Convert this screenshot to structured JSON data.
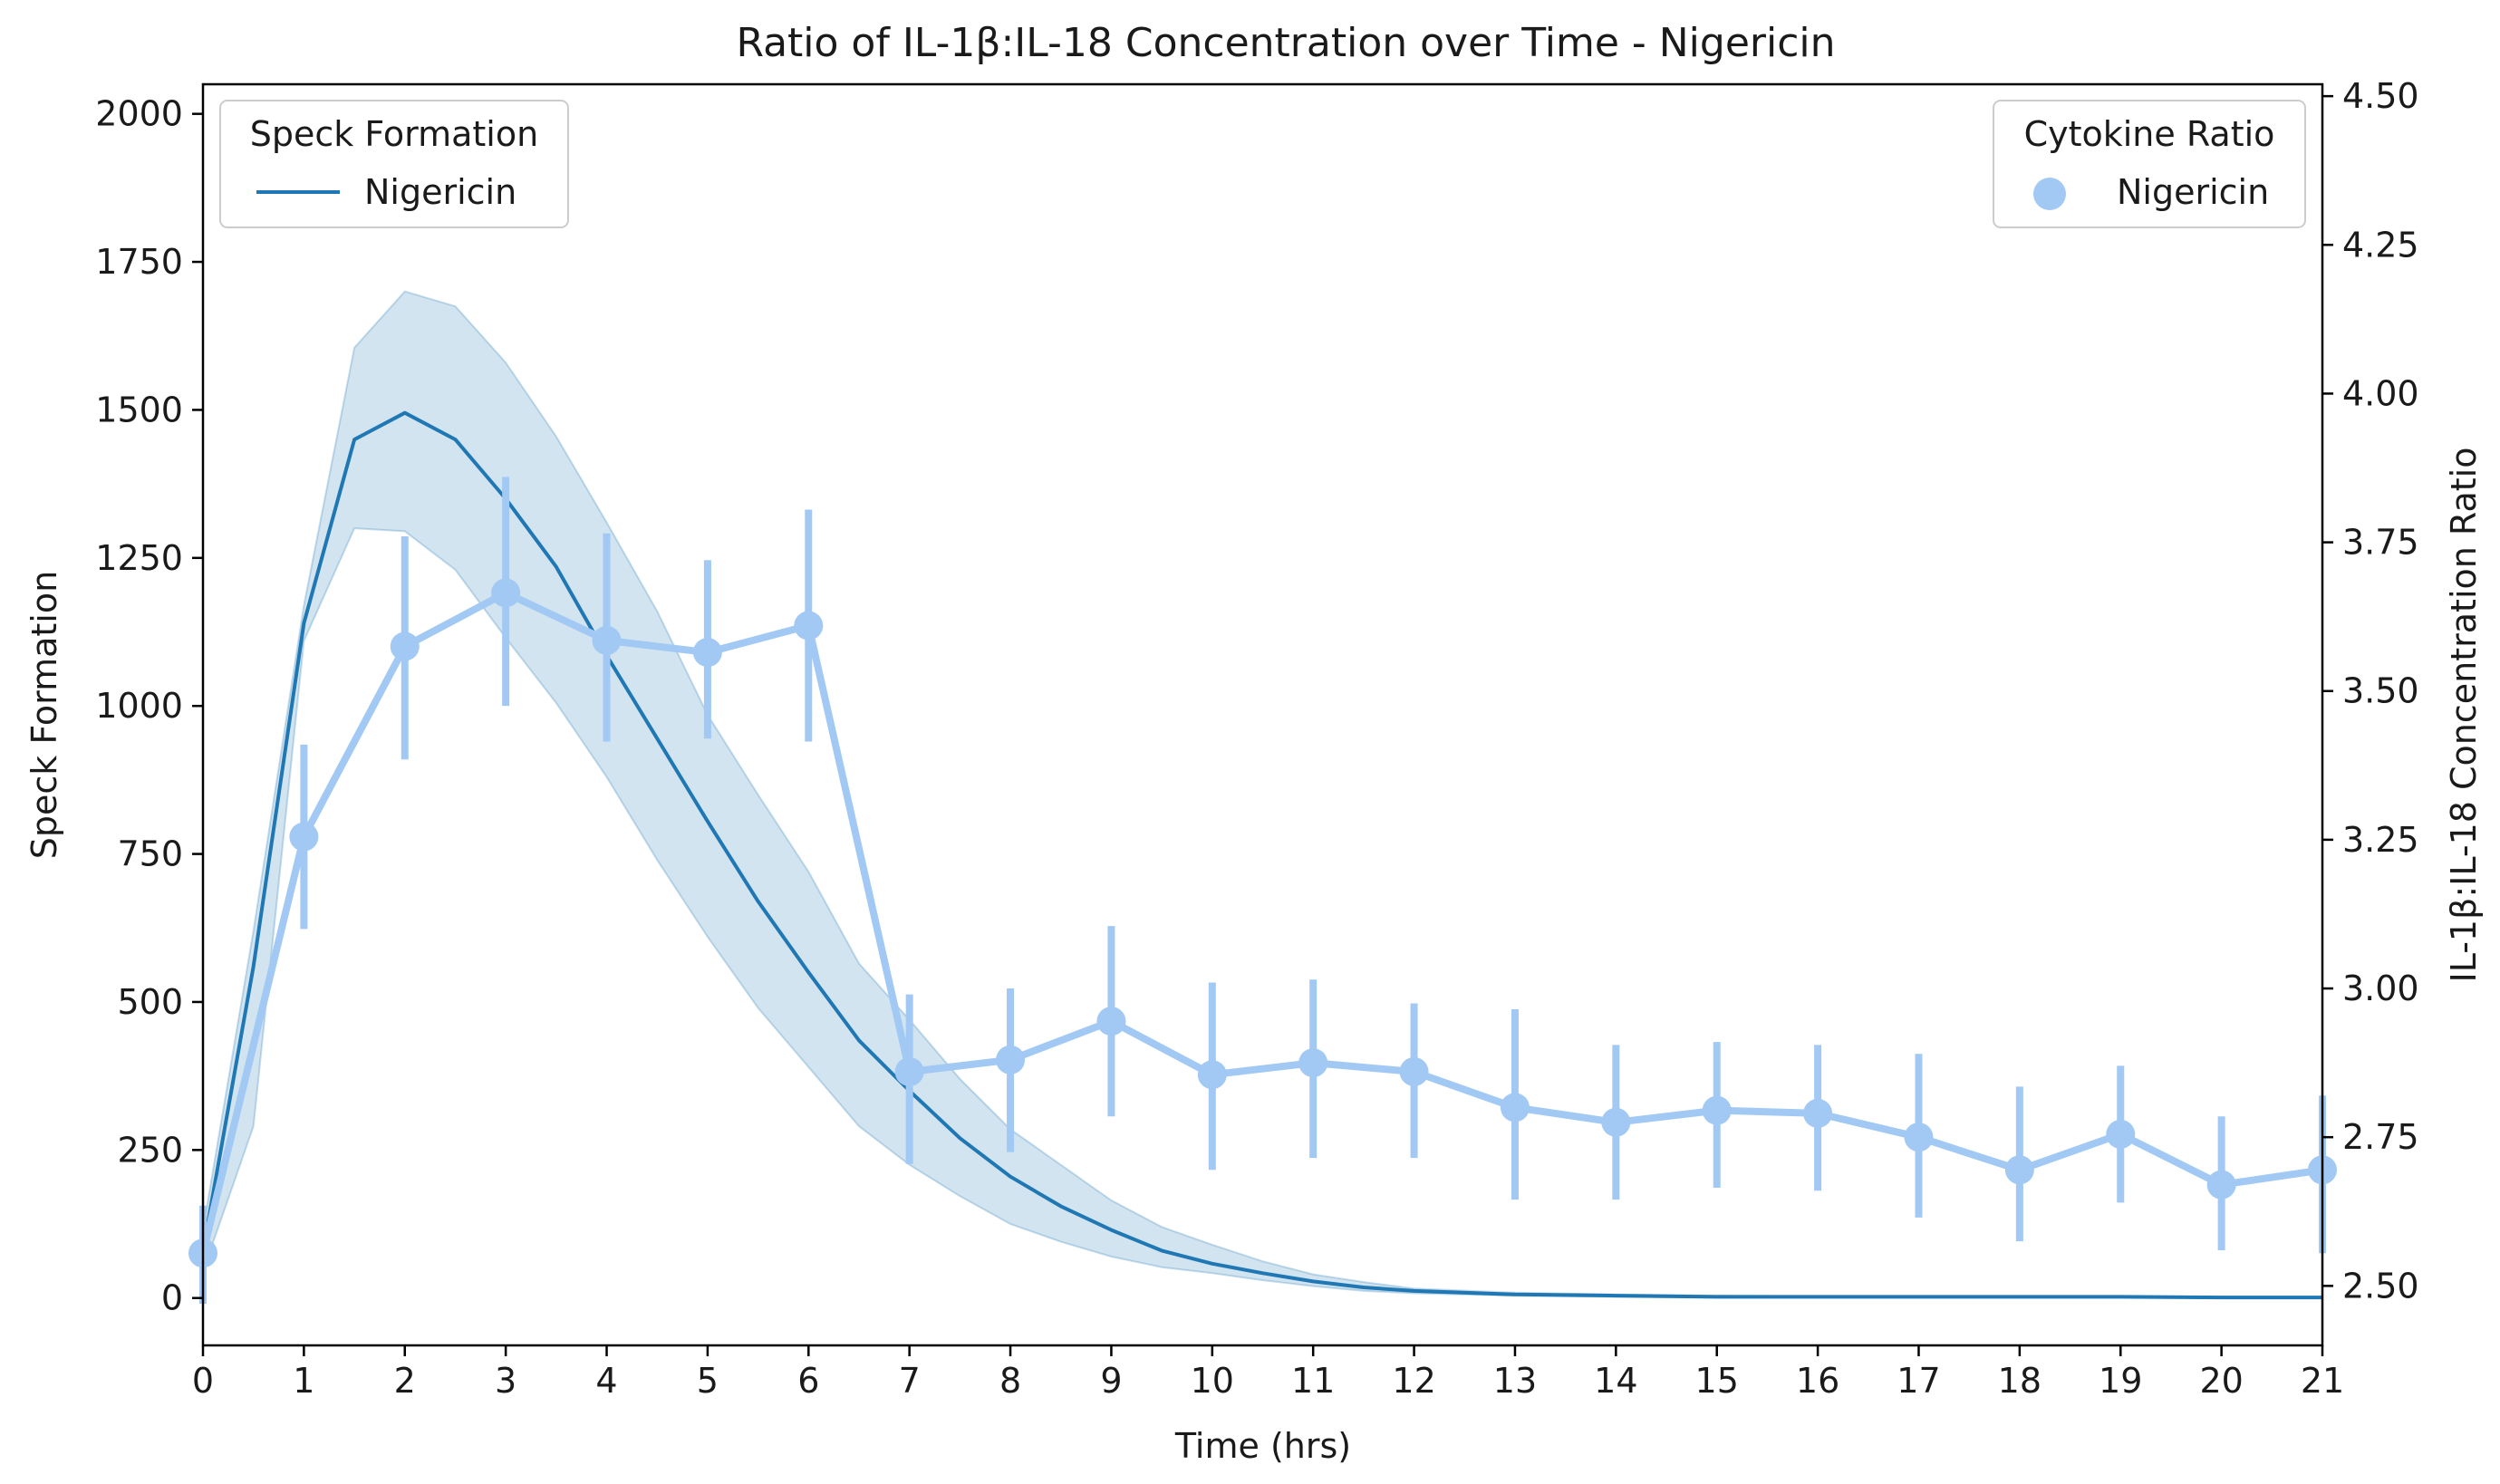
{
  "chart_data": {
    "type": "line",
    "title": "Ratio of IL-1β:IL-18 Concentration over Time - Nigericin",
    "xlabel": "Time (hrs)",
    "ylabel_left": "Speck Formation",
    "ylabel_right": "IL-1β:IL-18 Concentration Ratio",
    "xlim": [
      0,
      21
    ],
    "ylim_left": [
      -80,
      2050
    ],
    "ylim_right": [
      2.4,
      4.52
    ],
    "x_ticks": [
      "0",
      "1",
      "2",
      "3",
      "4",
      "5",
      "6",
      "7",
      "8",
      "9",
      "10",
      "11",
      "12",
      "13",
      "14",
      "15",
      "16",
      "17",
      "18",
      "19",
      "20",
      "21"
    ],
    "y_left_ticks": [
      "0",
      "250",
      "500",
      "750",
      "1000",
      "1250",
      "1500",
      "1750",
      "2000"
    ],
    "y_right_ticks": [
      "2.50",
      "2.75",
      "3.00",
      "3.25",
      "3.50",
      "3.75",
      "4.00",
      "4.25",
      "4.50"
    ],
    "grid": false,
    "colors": {
      "speck_line": "#1f77b4",
      "speck_band": "#1f77b4",
      "ratio": "#a1c9f4",
      "axis": "#000000"
    },
    "speck_series": {
      "name": "Nigericin",
      "axis": "left",
      "x": [
        0,
        0.5,
        1,
        1.5,
        2,
        2.5,
        3,
        3.5,
        4,
        4.5,
        5,
        5.5,
        6,
        6.5,
        7,
        7.5,
        8,
        8.5,
        9,
        9.5,
        10,
        10.5,
        11,
        11.5,
        12,
        13,
        14,
        15,
        16,
        17,
        18,
        19,
        20,
        21
      ],
      "y": [
        80,
        560,
        1140,
        1450,
        1495,
        1450,
        1350,
        1235,
        1085,
        945,
        805,
        670,
        550,
        435,
        350,
        270,
        205,
        155,
        115,
        80,
        58,
        42,
        28,
        18,
        12,
        6,
        4,
        2,
        2,
        2,
        2,
        2,
        1,
        1
      ],
      "lower": [
        45,
        290,
        1110,
        1300,
        1295,
        1230,
        1115,
        1005,
        880,
        740,
        610,
        490,
        390,
        290,
        225,
        172,
        125,
        95,
        70,
        52,
        42,
        30,
        20,
        12,
        8,
        4,
        2,
        1,
        1,
        1,
        1,
        1,
        1,
        1
      ],
      "upper": [
        115,
        620,
        1170,
        1605,
        1700,
        1675,
        1580,
        1455,
        1310,
        1160,
        985,
        850,
        720,
        565,
        470,
        370,
        285,
        225,
        165,
        120,
        90,
        62,
        40,
        27,
        16,
        9,
        6,
        4,
        3,
        3,
        3,
        3,
        2,
        2
      ]
    },
    "ratio_series": {
      "name": "Nigericin",
      "axis": "right",
      "x": [
        0,
        1,
        2,
        3,
        4,
        5,
        6,
        7,
        8,
        9,
        10,
        11,
        12,
        13,
        14,
        15,
        16,
        17,
        18,
        19,
        20,
        21
      ],
      "y": [
        2.555,
        3.255,
        3.575,
        3.665,
        3.585,
        3.565,
        3.61,
        2.86,
        2.88,
        2.945,
        2.855,
        2.875,
        2.86,
        2.8,
        2.775,
        2.795,
        2.79,
        2.75,
        2.695,
        2.755,
        2.67,
        2.695
      ],
      "err_low": [
        2.47,
        3.1,
        3.385,
        3.475,
        3.415,
        3.42,
        3.415,
        2.705,
        2.725,
        2.785,
        2.695,
        2.715,
        2.715,
        2.645,
        2.645,
        2.665,
        2.66,
        2.615,
        2.575,
        2.64,
        2.56,
        2.555
      ],
      "err_high": [
        2.635,
        3.41,
        3.76,
        3.86,
        3.765,
        3.72,
        3.805,
        2.99,
        3.0,
        3.105,
        3.01,
        3.015,
        2.975,
        2.965,
        2.905,
        2.91,
        2.905,
        2.89,
        2.835,
        2.87,
        2.785,
        2.82
      ]
    },
    "legends": [
      {
        "title": "Speck Formation",
        "entries": [
          "Nigericin"
        ],
        "marker": "line",
        "position": "top-left"
      },
      {
        "title": "Cytokine Ratio",
        "entries": [
          "Nigericin"
        ],
        "marker": "dot",
        "position": "top-right"
      }
    ]
  }
}
